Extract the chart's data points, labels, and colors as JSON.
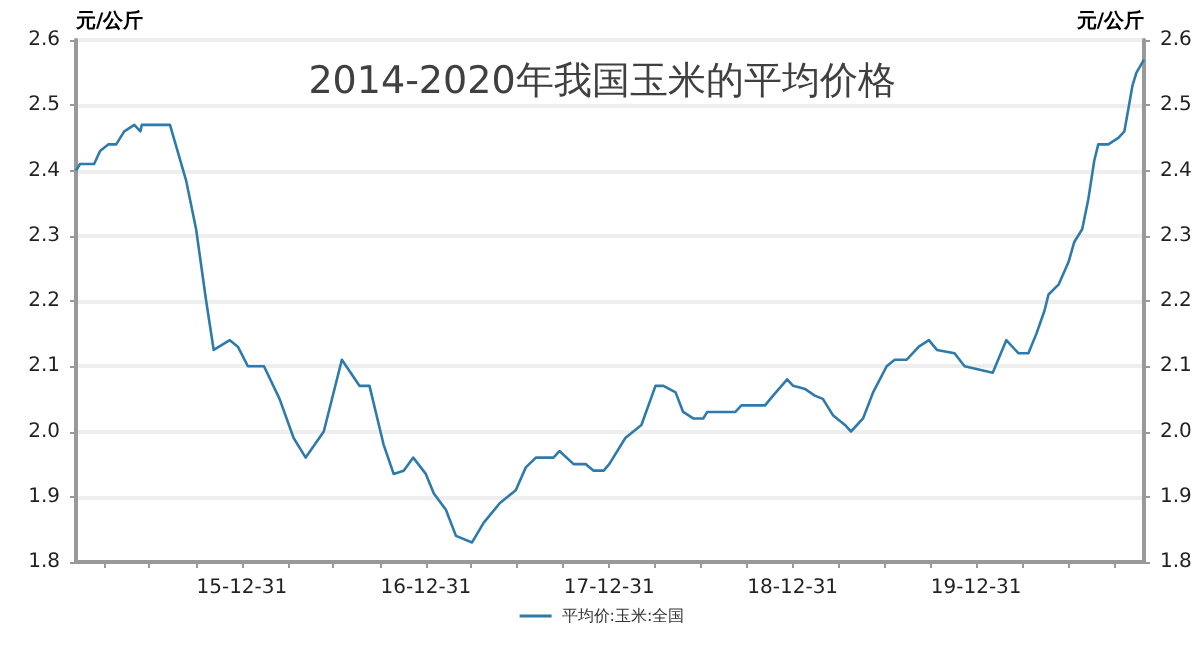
{
  "chart_data": {
    "type": "line",
    "title": "2014-2020年我国玉米的平均价格",
    "ylabel": "元/公斤",
    "y2label": "元/公斤",
    "x": [
      "2015-02-04",
      "2015-02-12",
      "2015-03-12",
      "2015-03-24",
      "2015-04-09",
      "2015-04-25",
      "2015-05-11",
      "2015-05-31",
      "2015-06-12",
      "2015-06-15",
      "2015-08-10",
      "2015-09-11",
      "2015-10-01",
      "2015-10-21",
      "2015-11-05",
      "2015-12-07",
      "2015-12-23",
      "2016-01-12",
      "2016-02-13",
      "2016-03-15",
      "2016-04-12",
      "2016-05-06",
      "2016-06-11",
      "2016-07-17",
      "2016-08-21",
      "2016-09-10",
      "2016-10-08",
      "2016-10-28",
      "2016-11-17",
      "2016-12-06",
      "2016-12-31",
      "2017-01-16",
      "2017-02-09",
      "2017-03-01",
      "2017-04-02",
      "2017-04-25",
      "2017-05-27",
      "2017-06-28",
      "2017-07-18",
      "2017-08-07",
      "2017-09-11",
      "2017-09-23",
      "2017-10-21",
      "2017-11-14",
      "2017-11-30",
      "2017-12-20",
      "2017-12-31",
      "2018-02-01",
      "2018-03-05",
      "2018-04-02",
      "2018-04-18",
      "2018-05-12",
      "2018-05-27",
      "2018-06-16",
      "2018-07-06",
      "2018-07-14",
      "2018-09-08",
      "2018-09-20",
      "2018-11-06",
      "2018-11-22",
      "2018-12-20",
      "2019-01-01",
      "2019-01-25",
      "2019-02-13",
      "2019-03-01",
      "2019-03-21",
      "2019-04-14",
      "2019-04-26",
      "2019-05-20",
      "2019-06-09",
      "2019-07-06",
      "2019-07-22",
      "2019-08-15",
      "2019-09-08",
      "2019-09-28",
      "2019-10-14",
      "2019-11-18",
      "2019-12-08",
      "2020-01-05",
      "2020-02-02",
      "2020-02-29",
      "2020-03-24",
      "2020-04-13",
      "2020-04-29",
      "2020-05-15",
      "2020-05-23",
      "2020-06-12",
      "2020-07-02",
      "2020-07-13",
      "2020-07-29",
      "2020-08-10",
      "2020-08-22",
      "2020-08-30",
      "2020-09-19",
      "2020-10-09",
      "2020-10-21",
      "2020-11-06",
      "2020-11-14",
      "2020-11-29"
    ],
    "series": [
      {
        "name": "平均价:玉米:全国",
        "color": "#2e7bab",
        "values": [
          2.4,
          2.41,
          2.41,
          2.43,
          2.44,
          2.44,
          2.46,
          2.47,
          2.46,
          2.47,
          2.47,
          2.385,
          2.31,
          2.2,
          2.125,
          2.14,
          2.13,
          2.1,
          2.1,
          2.05,
          1.99,
          1.96,
          2.0,
          2.11,
          2.07,
          2.07,
          1.98,
          1.935,
          1.94,
          1.96,
          1.935,
          1.905,
          1.88,
          1.84,
          1.83,
          1.86,
          1.89,
          1.91,
          1.945,
          1.96,
          1.96,
          1.97,
          1.95,
          1.95,
          1.94,
          1.94,
          1.95,
          1.99,
          2.01,
          2.07,
          2.07,
          2.06,
          2.03,
          2.02,
          2.02,
          2.03,
          2.03,
          2.04,
          2.04,
          2.055,
          2.08,
          2.07,
          2.065,
          2.055,
          2.05,
          2.025,
          2.01,
          2.0,
          2.02,
          2.06,
          2.1,
          2.11,
          2.11,
          2.13,
          2.14,
          2.125,
          2.12,
          2.1,
          2.095,
          2.09,
          2.14,
          2.12,
          2.12,
          2.15,
          2.185,
          2.21,
          2.225,
          2.26,
          2.29,
          2.31,
          2.355,
          2.415,
          2.44,
          2.44,
          2.45,
          2.46,
          2.53,
          2.55,
          2.57
        ]
      }
    ],
    "xlim": [
      "2015-02-04",
      "2020-11-29"
    ],
    "xticks": [
      {
        "value": "2015-03-31",
        "label": null
      },
      {
        "value": "2015-06-30",
        "label": null
      },
      {
        "value": "2015-09-30",
        "label": null
      },
      {
        "value": "2015-12-31",
        "label": "15-12-31"
      },
      {
        "value": "2016-03-31",
        "label": null
      },
      {
        "value": "2016-06-30",
        "label": null
      },
      {
        "value": "2016-09-30",
        "label": null
      },
      {
        "value": "2016-12-31",
        "label": "16-12-31"
      },
      {
        "value": "2017-03-31",
        "label": null
      },
      {
        "value": "2017-06-30",
        "label": null
      },
      {
        "value": "2017-09-30",
        "label": null
      },
      {
        "value": "2017-12-31",
        "label": "17-12-31"
      },
      {
        "value": "2018-03-31",
        "label": null
      },
      {
        "value": "2018-06-30",
        "label": null
      },
      {
        "value": "2018-09-30",
        "label": null
      },
      {
        "value": "2018-12-31",
        "label": "18-12-31"
      },
      {
        "value": "2019-03-31",
        "label": null
      },
      {
        "value": "2019-06-30",
        "label": null
      },
      {
        "value": "2019-09-30",
        "label": null
      },
      {
        "value": "2019-12-31",
        "label": "19-12-31"
      },
      {
        "value": "2020-03-31",
        "label": null
      },
      {
        "value": "2020-06-30",
        "label": null
      },
      {
        "value": "2020-09-30",
        "label": null
      }
    ],
    "ylim": [
      1.8,
      2.6
    ],
    "yticks": [
      1.8,
      1.9,
      {
        "value": 2,
        "label": "2.0"
      },
      2.1,
      2.2,
      2.3,
      2.4,
      2.5,
      2.6
    ],
    "y2lim": [
      1.8,
      2.6
    ],
    "y2ticks": [
      1.8,
      1.9,
      {
        "value": 2,
        "label": "2.0"
      },
      2.1,
      2.2,
      2.3,
      2.4,
      2.5,
      2.6
    ],
    "grid": "y",
    "legend": "bottom",
    "marker": "none",
    "line_style": "solid"
  }
}
